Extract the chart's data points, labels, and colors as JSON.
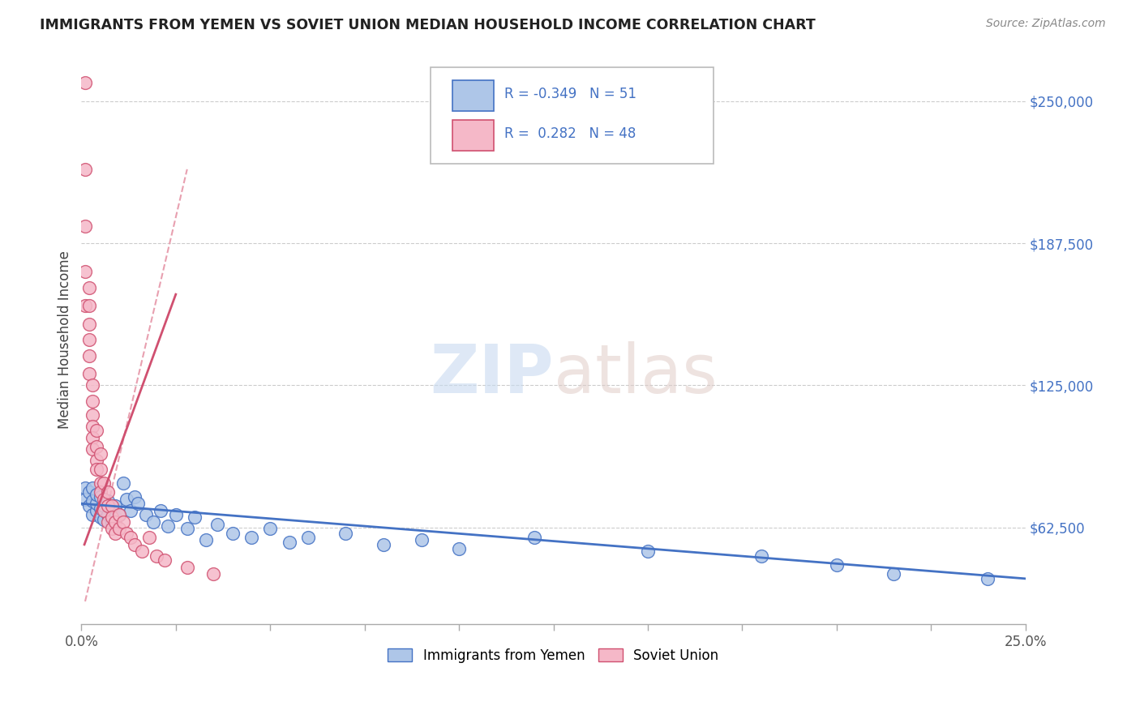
{
  "title": "IMMIGRANTS FROM YEMEN VS SOVIET UNION MEDIAN HOUSEHOLD INCOME CORRELATION CHART",
  "source": "Source: ZipAtlas.com",
  "ylabel": "Median Household Income",
  "y_ticks": [
    62500,
    125000,
    187500,
    250000
  ],
  "y_tick_labels": [
    "$62,500",
    "$125,000",
    "$187,500",
    "$250,000"
  ],
  "x_min": 0.0,
  "x_max": 0.25,
  "y_min": 20000,
  "y_max": 270000,
  "legend_blue_R": "-0.349",
  "legend_blue_N": "51",
  "legend_pink_R": "0.282",
  "legend_pink_N": "48",
  "legend_label_blue": "Immigrants from Yemen",
  "legend_label_pink": "Soviet Union",
  "blue_color": "#aec6e8",
  "pink_color": "#f5b8c8",
  "blue_line_color": "#4472c4",
  "pink_line_color": "#d05070",
  "pink_dash_color": "#e8a0b0",
  "blue_x": [
    0.001,
    0.001,
    0.002,
    0.002,
    0.003,
    0.003,
    0.003,
    0.004,
    0.004,
    0.004,
    0.005,
    0.005,
    0.005,
    0.006,
    0.006,
    0.007,
    0.007,
    0.008,
    0.008,
    0.009,
    0.009,
    0.01,
    0.011,
    0.012,
    0.013,
    0.014,
    0.015,
    0.017,
    0.019,
    0.021,
    0.023,
    0.025,
    0.028,
    0.03,
    0.033,
    0.036,
    0.04,
    0.045,
    0.05,
    0.055,
    0.06,
    0.07,
    0.08,
    0.09,
    0.1,
    0.12,
    0.15,
    0.18,
    0.2,
    0.215,
    0.24
  ],
  "blue_y": [
    80000,
    75000,
    72000,
    78000,
    68000,
    74000,
    80000,
    70000,
    73000,
    77000,
    67000,
    71000,
    76000,
    66000,
    72000,
    68000,
    74000,
    65000,
    70000,
    67000,
    72000,
    68000,
    82000,
    75000,
    70000,
    76000,
    73000,
    68000,
    65000,
    70000,
    63000,
    68000,
    62000,
    67000,
    57000,
    64000,
    60000,
    58000,
    62000,
    56000,
    58000,
    60000,
    55000,
    57000,
    53000,
    58000,
    52000,
    50000,
    46000,
    42000,
    40000
  ],
  "pink_x": [
    0.001,
    0.001,
    0.001,
    0.001,
    0.001,
    0.002,
    0.002,
    0.002,
    0.002,
    0.002,
    0.002,
    0.003,
    0.003,
    0.003,
    0.003,
    0.003,
    0.003,
    0.004,
    0.004,
    0.004,
    0.004,
    0.005,
    0.005,
    0.005,
    0.005,
    0.006,
    0.006,
    0.006,
    0.007,
    0.007,
    0.007,
    0.008,
    0.008,
    0.008,
    0.009,
    0.009,
    0.01,
    0.01,
    0.011,
    0.012,
    0.013,
    0.014,
    0.016,
    0.018,
    0.02,
    0.022,
    0.028,
    0.035
  ],
  "pink_y": [
    258000,
    220000,
    195000,
    175000,
    160000,
    168000,
    160000,
    152000,
    145000,
    138000,
    130000,
    125000,
    118000,
    112000,
    107000,
    102000,
    97000,
    92000,
    105000,
    98000,
    88000,
    95000,
    88000,
    82000,
    78000,
    82000,
    75000,
    70000,
    78000,
    72000,
    65000,
    72000,
    67000,
    62000,
    65000,
    60000,
    68000,
    62000,
    65000,
    60000,
    58000,
    55000,
    52000,
    58000,
    50000,
    48000,
    45000,
    42000
  ]
}
